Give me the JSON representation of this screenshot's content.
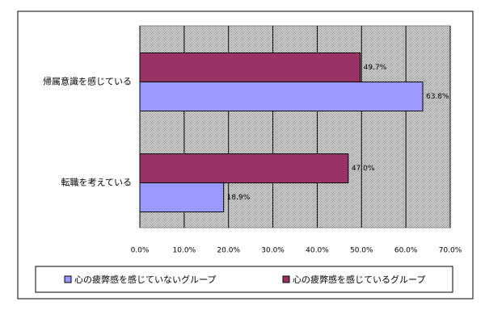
{
  "chart_data": {
    "type": "hbar",
    "categories": [
      "帰属意識を感じている",
      "転職を考えている"
    ],
    "series": [
      {
        "name": "心の疲弊感を感じていないグループ",
        "color": "#9999ff",
        "values": [
          63.8,
          18.9
        ],
        "value_labels": [
          "63.8%",
          "18.9%"
        ]
      },
      {
        "name": "心の疲弊感を感じているグループ",
        "color": "#993366",
        "values": [
          49.7,
          47.0
        ],
        "value_labels": [
          "49.7%",
          "47.0%"
        ]
      }
    ],
    "xlim": [
      0,
      70
    ],
    "xticks": [
      {
        "value": 0,
        "label": "0.0%"
      },
      {
        "value": 10,
        "label": "10.0%"
      },
      {
        "value": 20,
        "label": "20.0%"
      },
      {
        "value": 30,
        "label": "30.0%"
      },
      {
        "value": 40,
        "label": "40.0%"
      },
      {
        "value": 50,
        "label": "50.0%"
      },
      {
        "value": 60,
        "label": "60.0%"
      },
      {
        "value": 70,
        "label": "70.0%"
      }
    ],
    "grid": true
  }
}
